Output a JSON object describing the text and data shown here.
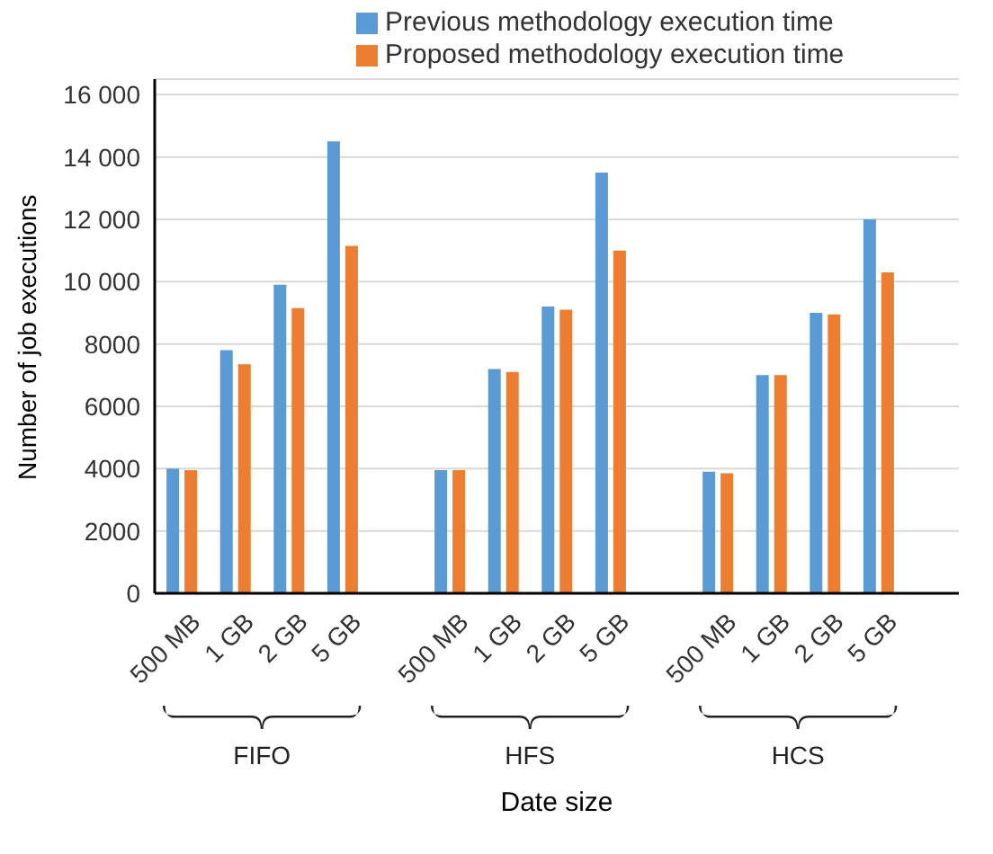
{
  "chart_data": {
    "type": "bar",
    "xlabel": "Date size",
    "ylabel": "Number of job executions",
    "categories": [
      "500 MB",
      "1 GB",
      "2 GB",
      "5 GB",
      null,
      "500 MB",
      "1 GB",
      "2 GB",
      "5 GB",
      null,
      "500 MB",
      "1 GB",
      "2 GB",
      "5 GB",
      null
    ],
    "series": [
      {
        "name": "Previous methodology execution time",
        "color": "#5b9bd5",
        "values": [
          4000,
          7800,
          9900,
          14500,
          null,
          3950,
          7200,
          9200,
          13500,
          null,
          3900,
          7000,
          9000,
          12000,
          null
        ]
      },
      {
        "name": "Proposed methodology execution time",
        "color": "#ed7d31",
        "values": [
          3950,
          7350,
          9150,
          11150,
          null,
          3950,
          7100,
          9100,
          11000,
          null,
          3850,
          7000,
          8950,
          10300,
          null
        ]
      }
    ],
    "annotations": [
      "FIFO",
      "HFS",
      "HCS"
    ],
    "ylim": [
      0,
      16500
    ],
    "yticks": [
      0,
      2000,
      4000,
      6000,
      8000,
      {
        "value": 10000,
        "label": "10 000"
      },
      {
        "value": 12000,
        "label": "12 000"
      },
      {
        "value": 14000,
        "label": "14 000"
      },
      {
        "value": 16000,
        "label": "16 000"
      }
    ],
    "grid": "y",
    "legend": "top right"
  }
}
